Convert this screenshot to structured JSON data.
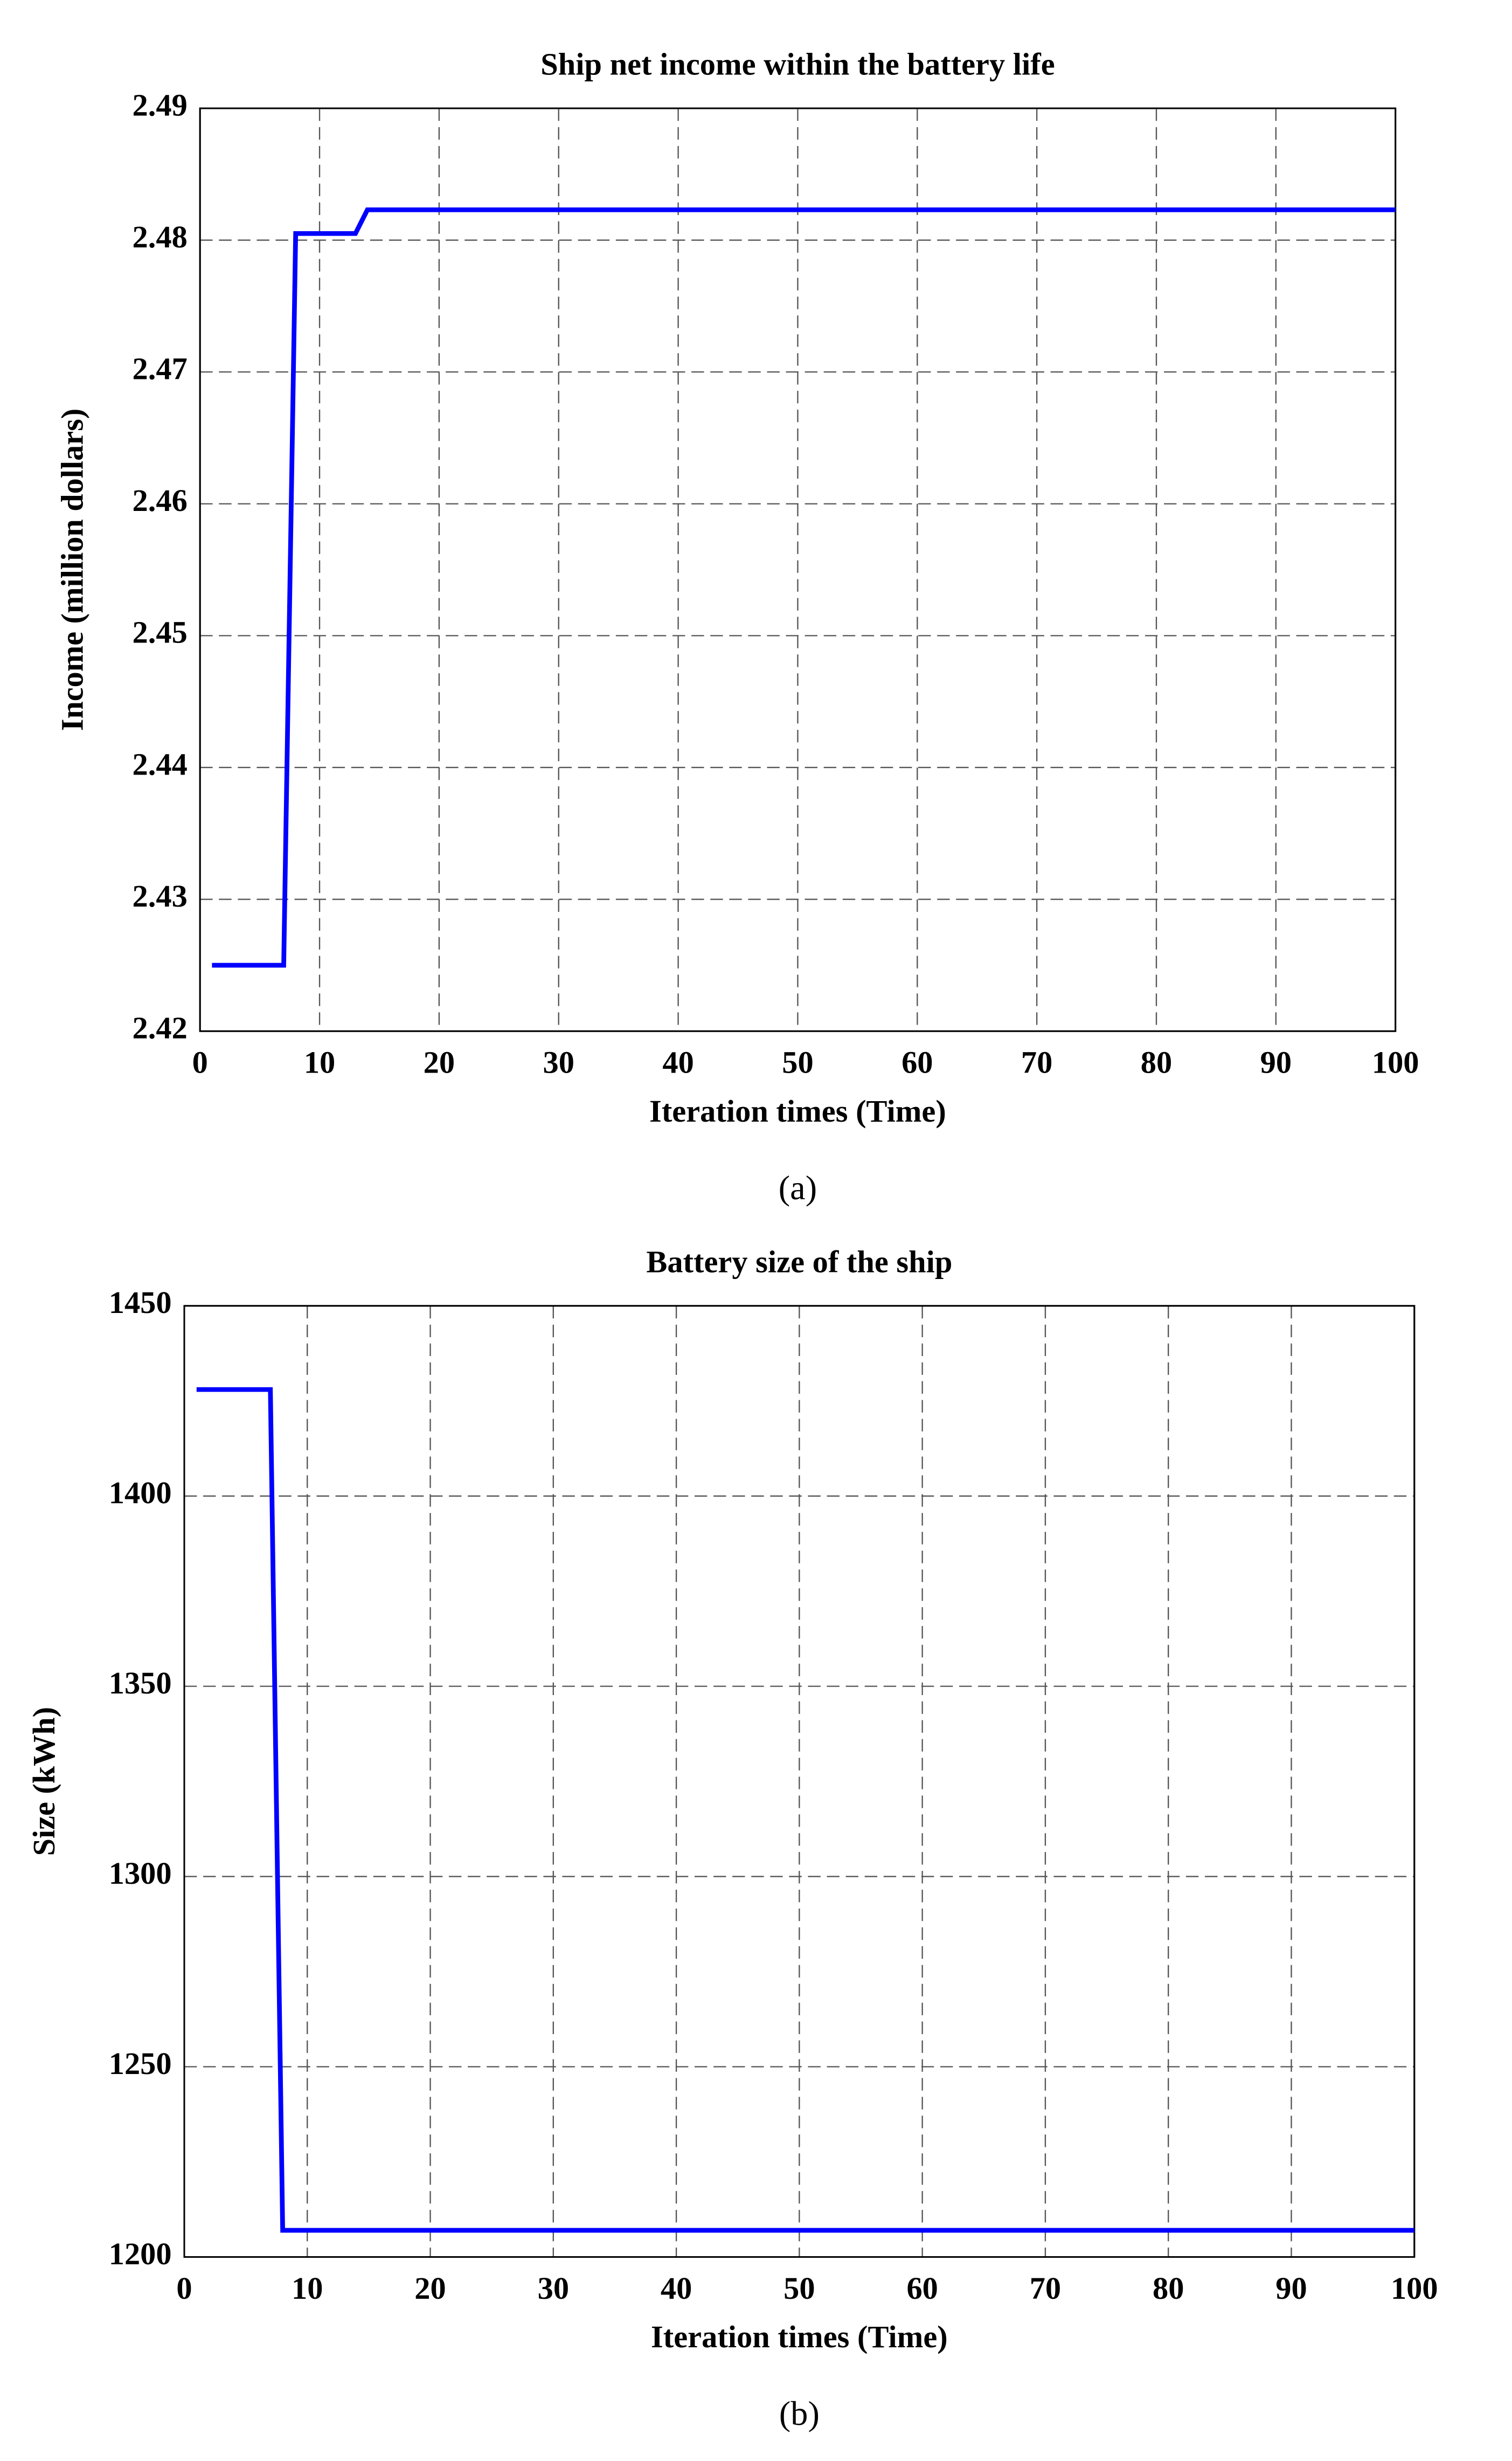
{
  "chart_data": [
    {
      "type": "line",
      "title": "Ship net income within the battery life",
      "x_label": "Iteration times (Time)",
      "y_label": "Income (million dollars)",
      "caption": "(a)",
      "x": [
        1,
        7,
        8,
        13,
        14,
        100
      ],
      "series": [
        {
          "color": "#0000ff",
          "values": [
            2.425,
            2.425,
            2.4805,
            2.4805,
            2.4823,
            2.4823
          ]
        }
      ],
      "xlim": [
        0,
        100
      ],
      "xticks": [
        0,
        10,
        20,
        30,
        40,
        50,
        60,
        70,
        80,
        90,
        100
      ],
      "ylim": [
        2.42,
        2.49
      ],
      "yticks": [
        2.42,
        2.43,
        2.44,
        2.45,
        2.46,
        2.47,
        2.48,
        2.49
      ],
      "grid": true
    },
    {
      "type": "line",
      "title": "Battery size of the ship",
      "x_label": "Iteration times (Time)",
      "y_label": "Size (kWh)",
      "caption": "(b)",
      "x": [
        1,
        7,
        8,
        100
      ],
      "series": [
        {
          "color": "#0000ff",
          "values": [
            1428,
            1428,
            1207,
            1207
          ]
        }
      ],
      "xlim": [
        0,
        100
      ],
      "xticks": [
        0,
        10,
        20,
        30,
        40,
        50,
        60,
        70,
        80,
        90,
        100
      ],
      "ylim": [
        1200,
        1450
      ],
      "yticks": [
        1200,
        1250,
        1300,
        1350,
        1400,
        1450
      ],
      "grid": true
    }
  ]
}
